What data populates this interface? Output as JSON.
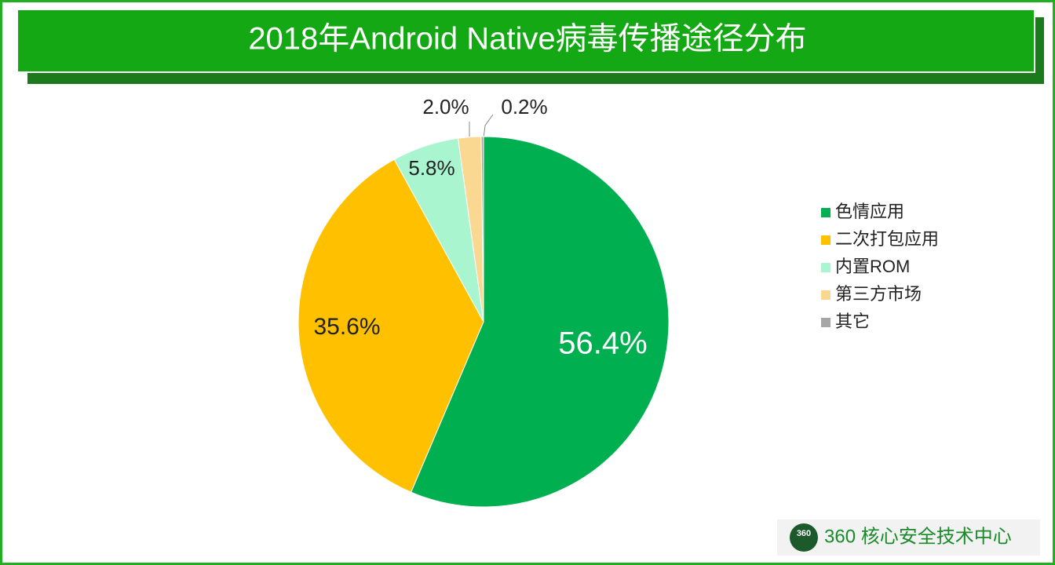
{
  "chart_data": {
    "type": "pie",
    "title": "2018年Android Native病毒传播途径分布",
    "categories": [
      "色情应用",
      "二次打包应用",
      "内置ROM",
      "第三方市场",
      "其它"
    ],
    "values": [
      56.4,
      35.6,
      5.8,
      2.0,
      0.2
    ],
    "value_labels": [
      "56.4%",
      "35.6%",
      "5.8%",
      "2.0%",
      "0.2%"
    ],
    "colors": [
      "#00b050",
      "#ffc000",
      "#a9f5cf",
      "#fad892",
      "#a6a6a6"
    ],
    "legend": "right"
  },
  "watermark": {
    "logo": "360",
    "text": "360 核心安全技术中心"
  }
}
